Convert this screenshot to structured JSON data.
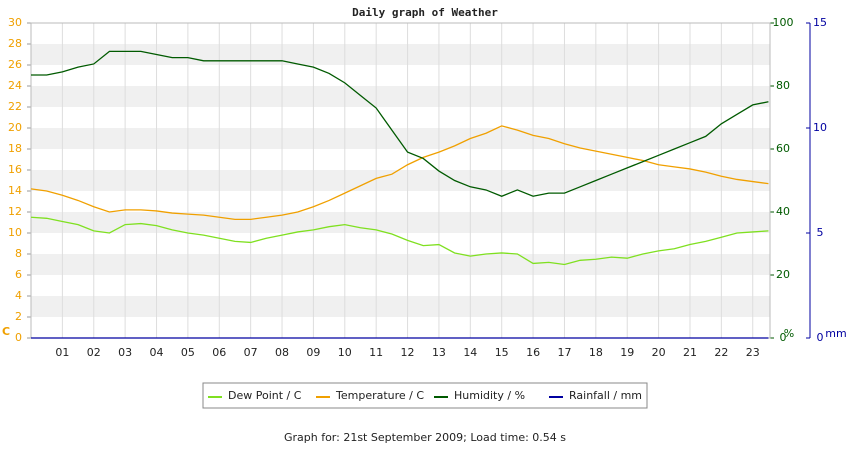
{
  "chart_data": {
    "type": "line",
    "title": "Daily graph of Weather",
    "footer": "Graph for: 21st September 2009; Load time: 0.54 s",
    "y_label": "C",
    "y2_label": "%",
    "y3_label": "mm",
    "x": [
      0,
      0.5,
      1,
      1.5,
      2,
      2.5,
      3,
      3.5,
      4,
      4.5,
      5,
      5.5,
      6,
      6.5,
      7,
      7.5,
      8,
      8.5,
      9,
      9.5,
      10,
      10.5,
      11,
      11.5,
      12,
      12.5,
      13,
      13.5,
      14,
      14.5,
      15,
      15.5,
      16,
      16.5,
      17,
      17.5,
      18,
      18.5,
      19,
      19.5,
      20,
      20.5,
      21,
      21.5,
      22,
      22.5,
      23,
      23.5
    ],
    "xlim": [
      0,
      23.55
    ],
    "xticks": [
      {
        "value": 1,
        "label": "01"
      },
      {
        "value": 2,
        "label": "02"
      },
      {
        "value": 3,
        "label": "03"
      },
      {
        "value": 4,
        "label": "04"
      },
      {
        "value": 5,
        "label": "05"
      },
      {
        "value": 6,
        "label": "06"
      },
      {
        "value": 7,
        "label": "07"
      },
      {
        "value": 8,
        "label": "08"
      },
      {
        "value": 9,
        "label": "09"
      },
      {
        "value": 10,
        "label": "10"
      },
      {
        "value": 11,
        "label": "11"
      },
      {
        "value": 12,
        "label": "12"
      },
      {
        "value": 13,
        "label": "13"
      },
      {
        "value": 14,
        "label": "14"
      },
      {
        "value": 15,
        "label": "15"
      },
      {
        "value": 16,
        "label": "16"
      },
      {
        "value": 17,
        "label": "17"
      },
      {
        "value": 18,
        "label": "18"
      },
      {
        "value": 19,
        "label": "19"
      },
      {
        "value": 20,
        "label": "20"
      },
      {
        "value": 21,
        "label": "21"
      },
      {
        "value": 22,
        "label": "22"
      },
      {
        "value": 23,
        "label": "23"
      }
    ],
    "ylim": [
      0,
      30
    ],
    "yticks": [
      0,
      2,
      4,
      6,
      8,
      10,
      12,
      14,
      16,
      18,
      20,
      22,
      24,
      26,
      28,
      30
    ],
    "y2lim": [
      0,
      100
    ],
    "y2ticks": [
      0,
      20,
      40,
      60,
      80,
      100
    ],
    "y3lim": [
      0,
      15
    ],
    "y3ticks": [
      0,
      5,
      10,
      15
    ],
    "grid": true,
    "series": [
      {
        "name": "Dew Point / C",
        "color": "#7fe020",
        "values": [
          11.5,
          11.4,
          11.1,
          10.8,
          10.2,
          10.0,
          10.8,
          10.9,
          10.7,
          10.3,
          10.0,
          9.8,
          9.5,
          9.2,
          9.1,
          9.5,
          9.8,
          10.1,
          10.3,
          10.6,
          10.8,
          10.5,
          10.3,
          9.9,
          9.3,
          8.8,
          8.9,
          8.1,
          7.8,
          8.0,
          8.1,
          8.0,
          7.1,
          7.2,
          7.0,
          7.4,
          7.5,
          7.7,
          7.6,
          8.0,
          8.3,
          8.5,
          8.9,
          9.2,
          9.6,
          10.0,
          10.1,
          10.2
        ]
      },
      {
        "name": "Temperature / C",
        "color": "#f0a000",
        "values": [
          14.2,
          14.0,
          13.6,
          13.1,
          12.5,
          12.0,
          12.2,
          12.2,
          12.1,
          11.9,
          11.8,
          11.7,
          11.5,
          11.3,
          11.3,
          11.5,
          11.7,
          12.0,
          12.5,
          13.1,
          13.8,
          14.5,
          15.2,
          15.6,
          16.5,
          17.2,
          17.7,
          18.3,
          19.0,
          19.5,
          20.2,
          19.8,
          19.3,
          19.0,
          18.5,
          18.1,
          17.8,
          17.5,
          17.2,
          16.9,
          16.5,
          16.3,
          16.1,
          15.8,
          15.4,
          15.1,
          14.9,
          14.7
        ]
      },
      {
        "name": "Humidity / %",
        "color": "#005a00",
        "axis": "y2",
        "values": [
          83.5,
          83.5,
          84.5,
          86,
          87,
          91,
          91,
          91,
          90,
          89,
          89,
          88,
          88,
          88,
          88,
          88,
          88,
          87,
          86,
          84,
          81,
          77,
          73,
          66,
          59,
          57,
          53,
          50,
          48,
          47,
          45,
          47,
          45,
          46,
          46,
          48,
          50,
          52,
          54,
          56,
          58,
          60,
          62,
          64,
          68,
          71,
          74,
          75
        ]
      },
      {
        "name": "Rainfall / mm",
        "color": "#0000a0",
        "axis": "y3",
        "values": [
          0,
          0,
          0,
          0,
          0,
          0,
          0,
          0,
          0,
          0,
          0,
          0,
          0,
          0,
          0,
          0,
          0,
          0,
          0,
          0,
          0,
          0,
          0,
          0,
          0,
          0,
          0,
          0,
          0,
          0,
          0,
          0,
          0,
          0,
          0,
          0,
          0,
          0,
          0,
          0,
          0,
          0,
          0,
          0,
          0,
          0,
          0,
          0
        ]
      }
    ]
  }
}
